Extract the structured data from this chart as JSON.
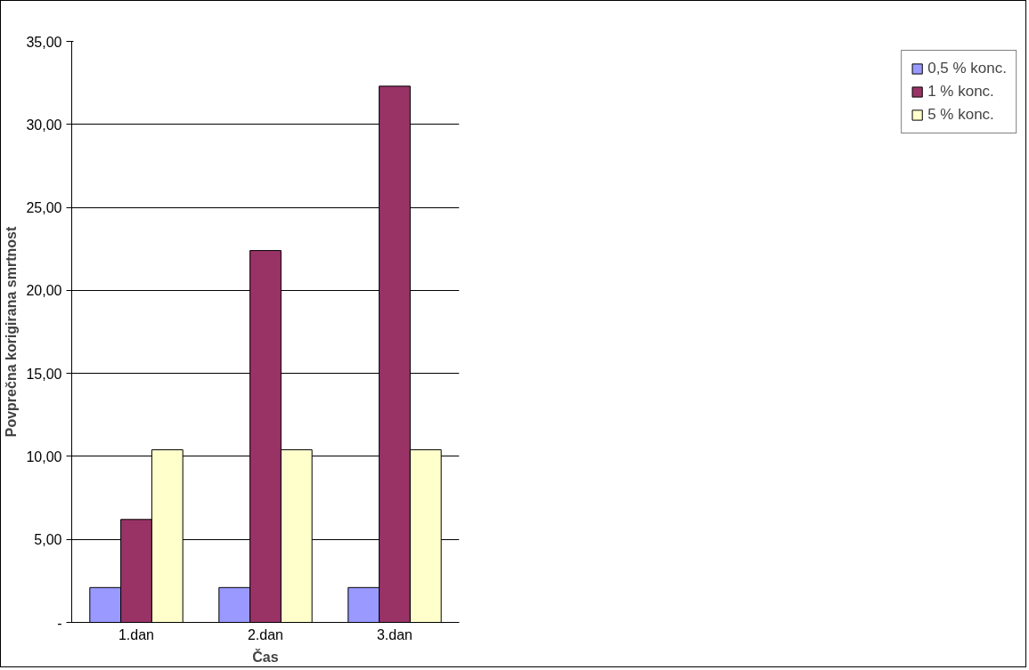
{
  "chart_data": {
    "type": "bar",
    "xlabel": "Čas",
    "ylabel": "Povprečna korigirana smrtnost",
    "categories": [
      "1.dan",
      "2.dan",
      "3.dan"
    ],
    "series": [
      {
        "name": "0,5 % konc.",
        "color": "#9999ff",
        "values": [
          2.1,
          2.1,
          2.1
        ]
      },
      {
        "name": "1 % konc.",
        "color": "#993366",
        "values": [
          6.2,
          22.4,
          32.3
        ]
      },
      {
        "name": "5 % konc.",
        "color": "#ffffcc",
        "values": [
          10.4,
          10.4,
          10.4
        ]
      }
    ],
    "ylim": [
      0,
      35
    ],
    "yticks": [
      {
        "value": 0,
        "label": "-"
      },
      {
        "value": 5,
        "label": "5,00"
      },
      {
        "value": 10,
        "label": "10,00"
      },
      {
        "value": 15,
        "label": "15,00"
      },
      {
        "value": 20,
        "label": "20,00"
      },
      {
        "value": 25,
        "label": "25,00"
      },
      {
        "value": 30,
        "label": "30,00"
      },
      {
        "value": 35,
        "label": "35,00"
      }
    ],
    "grid": "y",
    "legend": "right"
  }
}
